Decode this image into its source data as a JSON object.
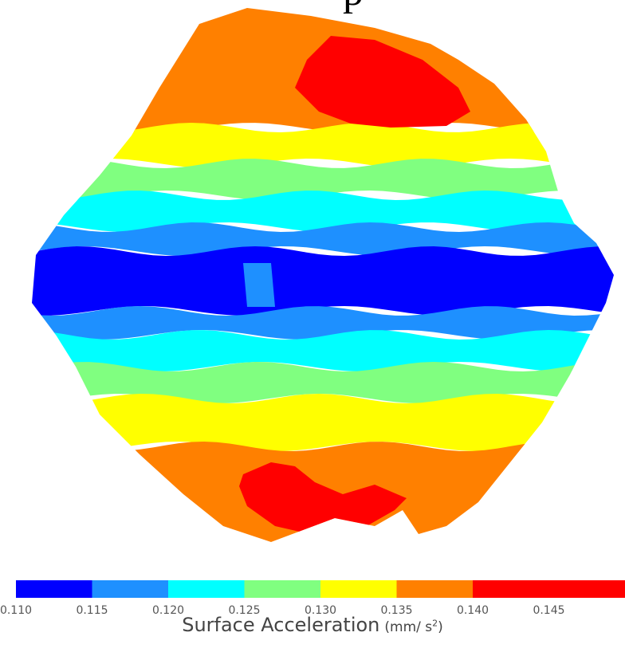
{
  "chart_data": {
    "type": "heatmap",
    "title_fragment": "p",
    "colorbar": {
      "label": "Surface Acceleration",
      "unit_base": "(mm/ s",
      "unit_exp": "2",
      "unit_close": ")",
      "bins": [
        {
          "from": 0.11,
          "to": 0.115,
          "color": "#0000ff"
        },
        {
          "from": 0.115,
          "to": 0.12,
          "color": "#1e90ff"
        },
        {
          "from": 0.12,
          "to": 0.125,
          "color": "#00ffff"
        },
        {
          "from": 0.125,
          "to": 0.13,
          "color": "#80ff80"
        },
        {
          "from": 0.13,
          "to": 0.135,
          "color": "#ffff00"
        },
        {
          "from": 0.135,
          "to": 0.14,
          "color": "#ff8000"
        },
        {
          "from": 0.14,
          "to": 0.15,
          "color": "#ff0000"
        }
      ],
      "ticks": [
        "0.110",
        "0.115",
        "0.120",
        "0.125",
        "0.130",
        "0.135",
        "0.140",
        "0.145"
      ],
      "range": [
        0.11,
        0.15
      ]
    },
    "surface_bands": [
      {
        "value": 0.143,
        "color": "#ff0000"
      },
      {
        "value": 0.138,
        "color": "#ff8000"
      },
      {
        "value": 0.133,
        "color": "#ffff00"
      },
      {
        "value": 0.128,
        "color": "#80ff80"
      },
      {
        "value": 0.123,
        "color": "#00ffff"
      },
      {
        "value": 0.118,
        "color": "#1e90ff"
      },
      {
        "value": 0.112,
        "color": "#0000ff"
      }
    ]
  }
}
